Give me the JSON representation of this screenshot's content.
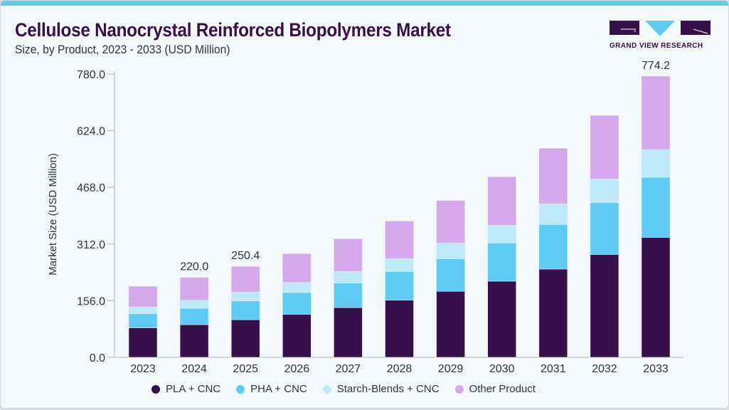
{
  "header": {
    "title": "Cellulose Nanocrystal Reinforced Biopolymers Market",
    "subtitle": "Size, by Product, 2023 - 2033 (USD Million)",
    "logo_text": "GRAND VIEW RESEARCH"
  },
  "chart_data": {
    "type": "bar",
    "stacked": true,
    "title": "Cellulose Nanocrystal Reinforced Biopolymers Market",
    "subtitle": "Size, by Product, 2023 - 2033 (USD Million)",
    "xlabel": "",
    "ylabel": "Market Size (USD Million)",
    "ylim": [
      0,
      780
    ],
    "yticks": [
      "0.0",
      "156.0",
      "312.0",
      "468.0",
      "624.0",
      "780.0"
    ],
    "grid": false,
    "legend_position": "bottom",
    "categories": [
      "2023",
      "2024",
      "2025",
      "2026",
      "2027",
      "2028",
      "2029",
      "2030",
      "2031",
      "2032",
      "2033"
    ],
    "series": [
      {
        "name": "PLA + CNC",
        "color": "#36104a",
        "values": [
          81.1,
          89.9,
          103.6,
          118.5,
          136.9,
          157.3,
          181.8,
          209.8,
          243.1,
          283.4,
          330.4
        ]
      },
      {
        "name": "PHA + CNC",
        "color": "#5ecbf5",
        "values": [
          39.4,
          44.9,
          51.7,
          60.1,
          67.4,
          79.1,
          89.3,
          104.8,
          122.6,
          142.4,
          165.4
        ]
      },
      {
        "name": "Starch-Blends + CNC",
        "color": "#bde9f8",
        "values": [
          18.4,
          22.5,
          24.5,
          27.7,
          32.1,
          35.3,
          43.5,
          49.1,
          56.6,
          65.3,
          76.2
        ]
      },
      {
        "name": "Other Product",
        "color": "#d4a8ea",
        "values": [
          56.6,
          62.7,
          70.6,
          79.1,
          89.9,
          103.6,
          117.3,
          133.6,
          153.2,
          174.9,
          202.2
        ]
      }
    ],
    "data_labels": [
      {
        "category": "2024",
        "text": "220.0"
      },
      {
        "category": "2025",
        "text": "250.4"
      },
      {
        "category": "2033",
        "text": "774.2"
      }
    ]
  }
}
